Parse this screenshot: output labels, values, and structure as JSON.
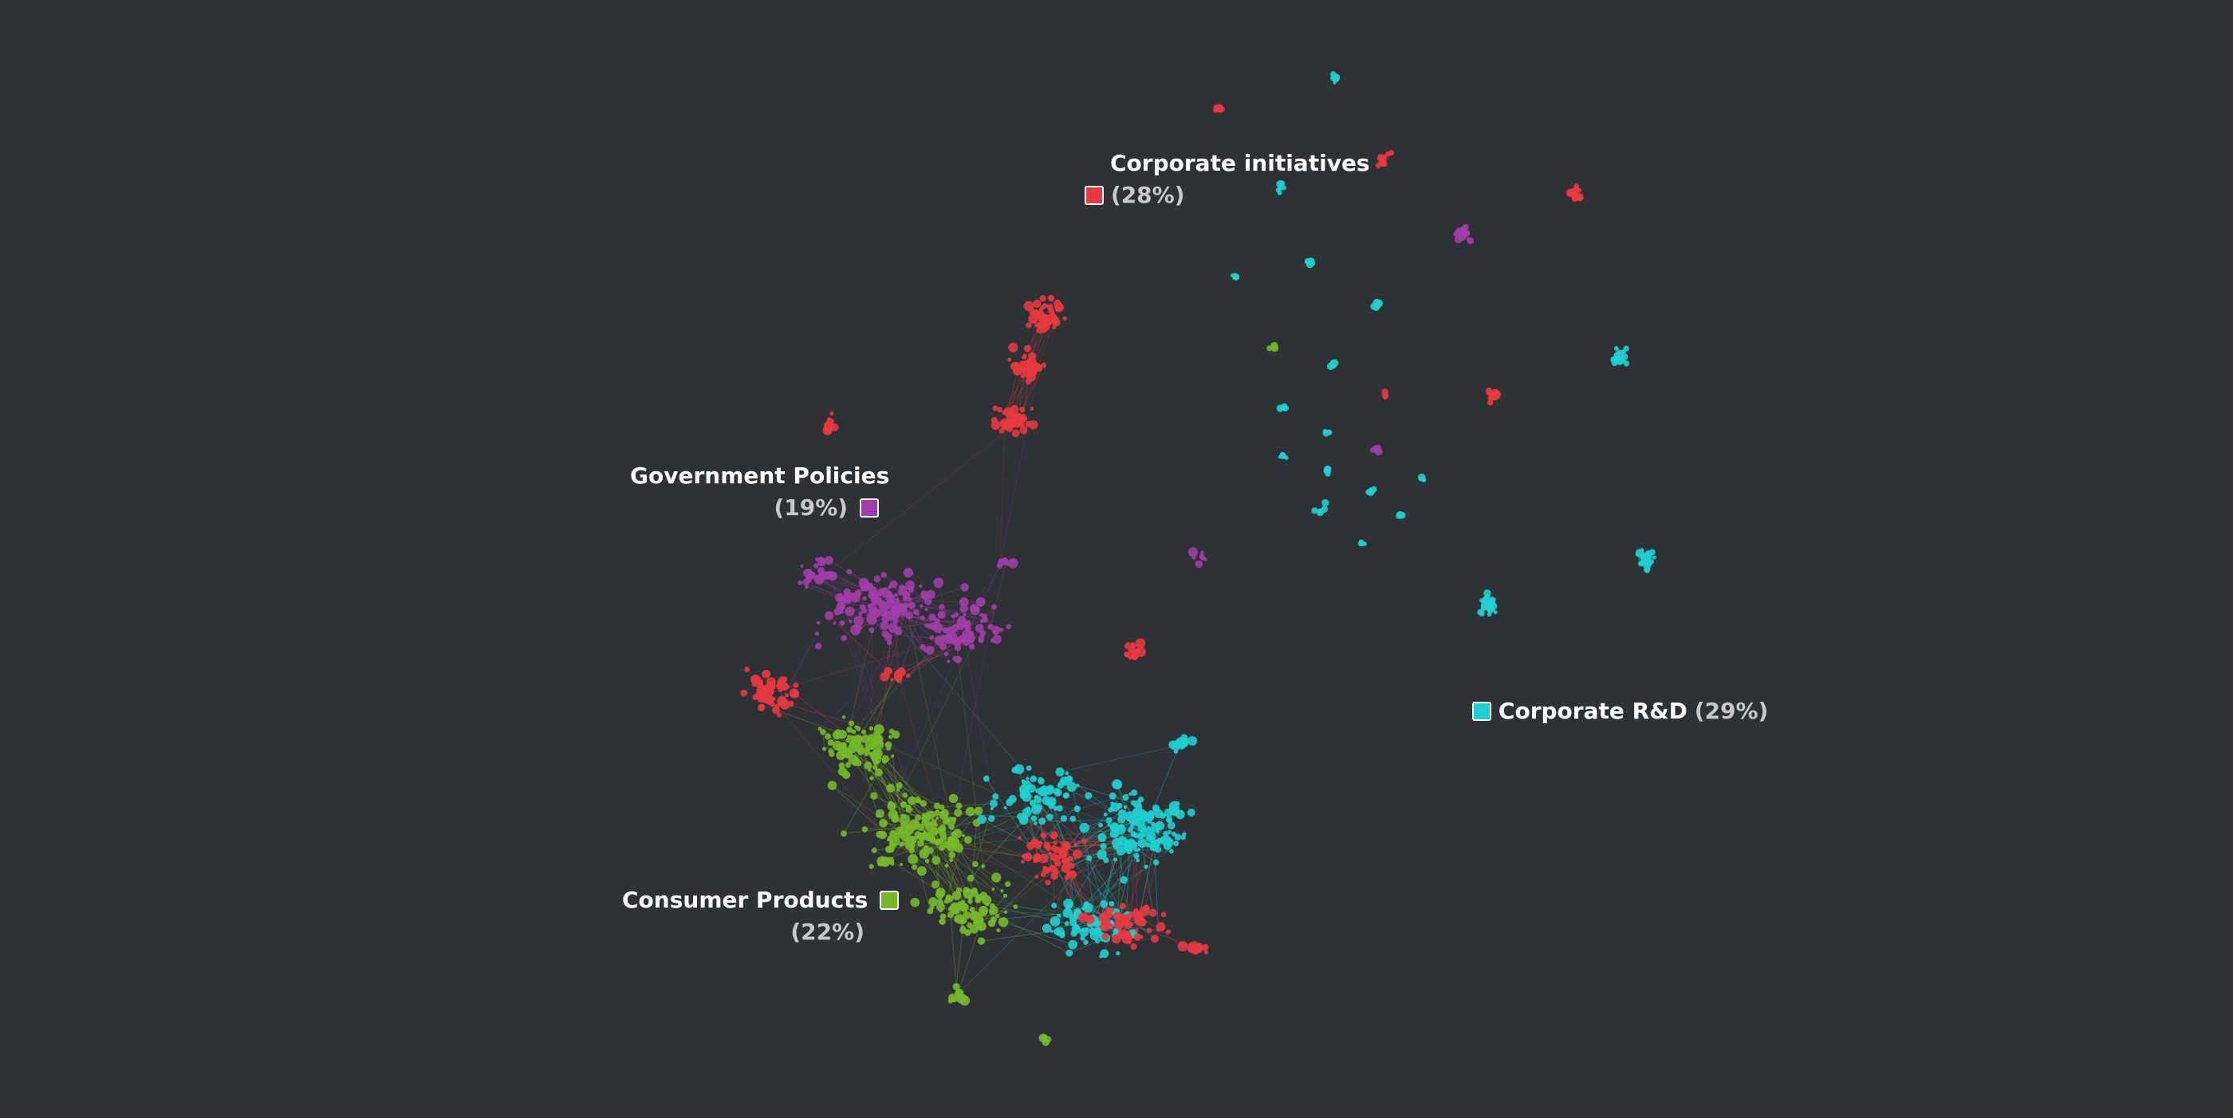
{
  "clusters": [
    {
      "id": "corporate-initiatives",
      "name": "Corporate initiatives",
      "percent": "(28%)",
      "color": "#e8393f"
    },
    {
      "id": "government-policies",
      "name": "Government Policies",
      "percent": "(19%)",
      "color": "#a13da8"
    },
    {
      "id": "consumer-products",
      "name": "Consumer Products",
      "percent": "(22%)",
      "color": "#76b82a"
    },
    {
      "id": "corporate-rd",
      "name": "Corporate R&D",
      "percent": "(29%)",
      "color": "#1fcfcf"
    }
  ],
  "background": "#2e3135"
}
